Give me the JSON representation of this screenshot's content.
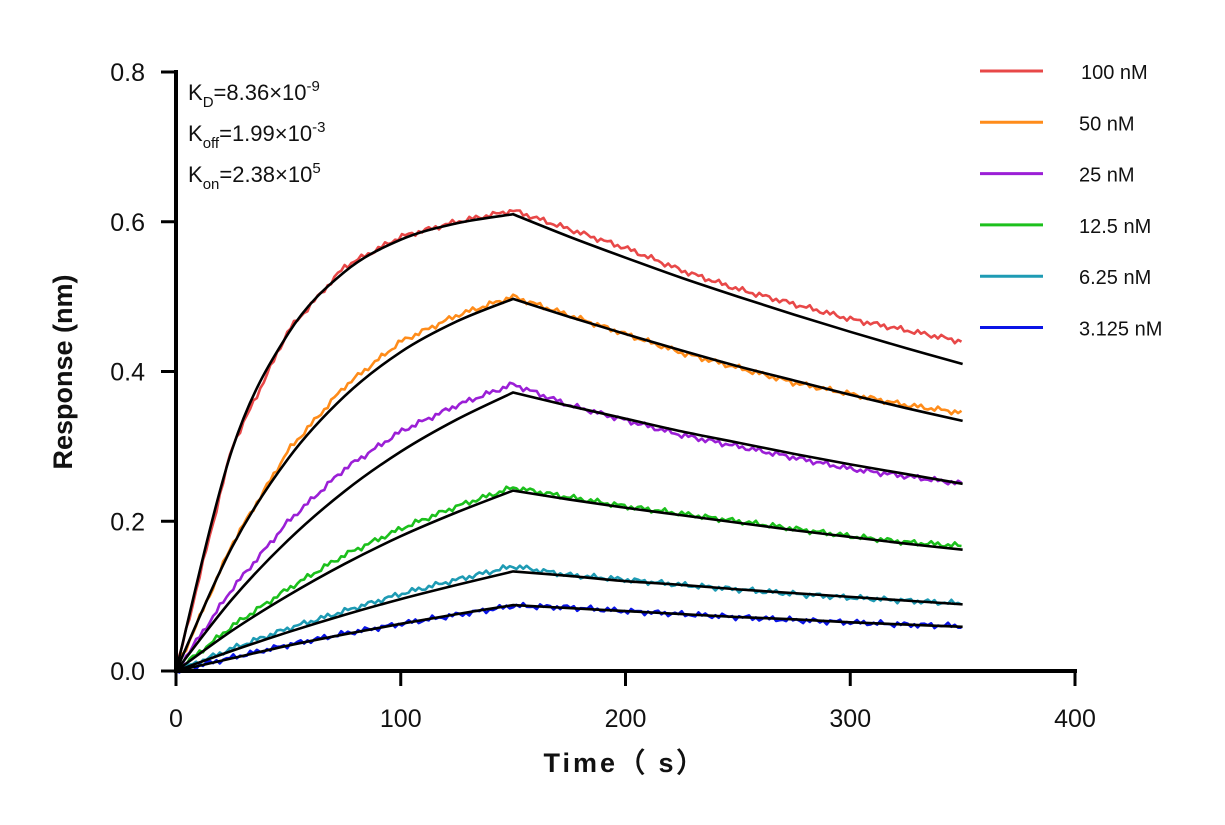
{
  "chart_data": {
    "type": "line",
    "title": "",
    "xlabel": "Time（ s）",
    "ylabel": "Response (nm)",
    "xlim": [
      0,
      400
    ],
    "ylim": [
      0,
      0.8
    ],
    "xticks": [
      "0",
      "100",
      "200",
      "300",
      "400"
    ],
    "yticks": [
      "0.0",
      "0.2",
      "0.4",
      "0.6",
      "0.8"
    ],
    "grid": false,
    "legend_position": "top-right",
    "annotations": [
      {
        "symbol": "K",
        "sub": "D",
        "value": "=8.36×10",
        "exp": "-9"
      },
      {
        "symbol": "K",
        "sub": "off",
        "value": "=1.99×10",
        "exp": "-3"
      },
      {
        "symbol": "K",
        "sub": "on",
        "value": "=2.38×10",
        "exp": "5"
      }
    ],
    "x": [
      0,
      25,
      50,
      75,
      100,
      125,
      150,
      175,
      200,
      225,
      250,
      275,
      300,
      325,
      350
    ],
    "fit_color": "#000000",
    "series": [
      {
        "name": "100 nM",
        "color": "#e84848",
        "measured": [
          0,
          0.3,
          0.455,
          0.54,
          0.58,
          0.6,
          0.615,
          0.59,
          0.565,
          0.535,
          0.51,
          0.49,
          0.47,
          0.455,
          0.44
        ],
        "fit": [
          0,
          0.296,
          0.451,
          0.533,
          0.576,
          0.598,
          0.61,
          0.58,
          0.552,
          0.525,
          0.5,
          0.476,
          0.453,
          0.431,
          0.41
        ]
      },
      {
        "name": "50 nM",
        "color": "#ff8c1a",
        "measured": [
          0,
          0.17,
          0.295,
          0.38,
          0.44,
          0.475,
          0.5,
          0.475,
          0.45,
          0.425,
          0.405,
          0.385,
          0.37,
          0.355,
          0.345
        ],
        "fit": [
          0,
          0.166,
          0.284,
          0.367,
          0.426,
          0.467,
          0.497,
          0.473,
          0.45,
          0.428,
          0.407,
          0.388,
          0.369,
          0.351,
          0.334
        ]
      },
      {
        "name": "25 nM",
        "color": "#9b1fd6",
        "measured": [
          0,
          0.11,
          0.2,
          0.27,
          0.32,
          0.355,
          0.383,
          0.355,
          0.335,
          0.315,
          0.3,
          0.285,
          0.27,
          0.26,
          0.25
        ],
        "fit": [
          0,
          0.096,
          0.175,
          0.24,
          0.293,
          0.336,
          0.372,
          0.354,
          0.337,
          0.32,
          0.305,
          0.29,
          0.276,
          0.263,
          0.25
        ]
      },
      {
        "name": "12.5 nM",
        "color": "#1cc01c",
        "measured": [
          0,
          0.06,
          0.11,
          0.155,
          0.19,
          0.22,
          0.245,
          0.232,
          0.22,
          0.21,
          0.2,
          0.19,
          0.18,
          0.172,
          0.167
        ],
        "fit": [
          0,
          0.054,
          0.101,
          0.143,
          0.18,
          0.212,
          0.241,
          0.229,
          0.218,
          0.208,
          0.198,
          0.188,
          0.179,
          0.17,
          0.162
        ]
      },
      {
        "name": "6.25 nM",
        "color": "#1e9bb4",
        "measured": [
          0,
          0.03,
          0.057,
          0.08,
          0.103,
          0.122,
          0.14,
          0.128,
          0.122,
          0.115,
          0.109,
          0.103,
          0.098,
          0.094,
          0.09
        ],
        "fit": [
          0,
          0.027,
          0.052,
          0.075,
          0.096,
          0.115,
          0.133,
          0.127,
          0.12,
          0.115,
          0.109,
          0.104,
          0.099,
          0.094,
          0.089
        ]
      },
      {
        "name": "3.125 nM",
        "color": "#0a14e6",
        "measured": [
          0,
          0.018,
          0.035,
          0.05,
          0.063,
          0.075,
          0.087,
          0.085,
          0.08,
          0.076,
          0.072,
          0.068,
          0.065,
          0.062,
          0.06
        ],
        "fit": [
          0,
          0.017,
          0.034,
          0.049,
          0.063,
          0.076,
          0.088,
          0.084,
          0.08,
          0.076,
          0.072,
          0.069,
          0.065,
          0.062,
          0.059
        ]
      }
    ]
  }
}
